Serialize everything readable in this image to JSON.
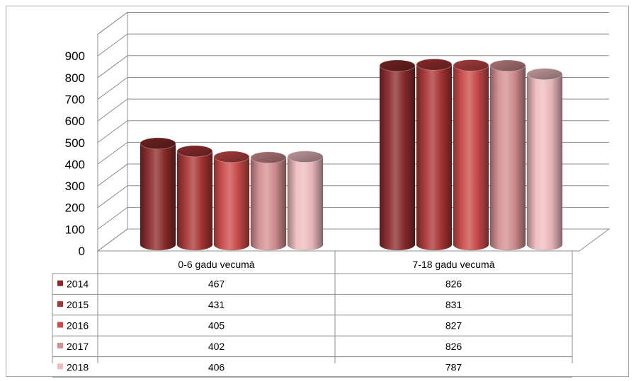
{
  "chart_data": {
    "type": "bar",
    "style": "3d-cylinder",
    "categories": [
      "0-6 gadu vecumā",
      "7-18 gadu vecumā"
    ],
    "series": [
      {
        "name": "2014",
        "color": "#8b2a2a",
        "values": [
          467,
          826
        ]
      },
      {
        "name": "2015",
        "color": "#a93535",
        "values": [
          431,
          831
        ]
      },
      {
        "name": "2016",
        "color": "#cc4a4a",
        "values": [
          405,
          827
        ]
      },
      {
        "name": "2017",
        "color": "#d48f92",
        "values": [
          402,
          826
        ]
      },
      {
        "name": "2018",
        "color": "#efbcc0",
        "values": [
          406,
          787
        ]
      }
    ],
    "ylim": [
      0,
      1000
    ],
    "yticks": [
      0,
      100,
      200,
      300,
      400,
      500,
      600,
      700,
      800,
      900
    ],
    "grid": true,
    "legend": "data-table-below"
  }
}
